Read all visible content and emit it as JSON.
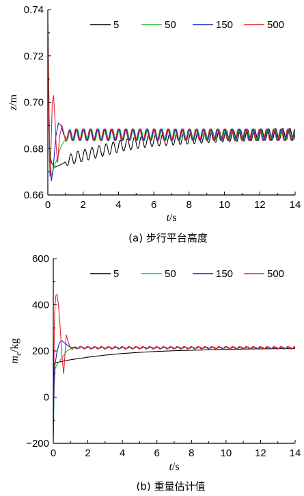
{
  "chart_data": [
    {
      "type": "line",
      "caption": "(a) 步行平台高度",
      "xlabel_italic": "t",
      "xlabel_unit": "/s",
      "ylabel_italic": "z",
      "ylabel_unit": "/m",
      "xlim": [
        0,
        14
      ],
      "ylim": [
        0.66,
        0.74
      ],
      "xticks": [
        "0",
        "2",
        "4",
        "6",
        "8",
        "10",
        "12",
        "14"
      ],
      "yticks": [
        "0.66",
        "0.68",
        "0.70",
        "0.72",
        "0.74"
      ],
      "grid": false,
      "legend": "top-right",
      "series": [
        {
          "name": "5",
          "color": "#000000",
          "x": [
            0,
            0.1,
            0.2,
            0.4,
            0.7,
            1,
            1.5,
            2,
            3,
            4,
            5,
            6,
            7,
            8,
            9,
            10,
            11,
            12,
            13,
            14
          ],
          "y": [
            0.735,
            0.68,
            0.674,
            0.672,
            0.673,
            0.674,
            0.676,
            0.677,
            0.679,
            0.681,
            0.6825,
            0.6835,
            0.684,
            0.6845,
            0.685,
            0.6855,
            0.6857,
            0.686,
            0.6862,
            0.6863
          ],
          "osc_amp": 0.0025,
          "osc_period": 0.4
        },
        {
          "name": "50",
          "color": "#22c42a",
          "x": [
            0,
            0.05,
            0.1,
            0.2,
            0.3,
            0.5,
            0.7,
            0.9,
            1.1,
            1.4,
            2,
            3,
            4,
            6,
            8,
            10,
            12,
            14
          ],
          "y": [
            0.72,
            0.71,
            0.68,
            0.668,
            0.671,
            0.675,
            0.68,
            0.683,
            0.685,
            0.686,
            0.686,
            0.686,
            0.686,
            0.686,
            0.686,
            0.686,
            0.686,
            0.686
          ],
          "osc_amp": 0.0025,
          "osc_period": 0.4
        },
        {
          "name": "150",
          "color": "#1a1ad8",
          "x": [
            0,
            0.05,
            0.1,
            0.2,
            0.3,
            0.45,
            0.6,
            0.75,
            0.9,
            1.1,
            1.3,
            2,
            4,
            6,
            8,
            10,
            12,
            14
          ],
          "y": [
            0.722,
            0.7,
            0.675,
            0.666,
            0.671,
            0.685,
            0.691,
            0.69,
            0.686,
            0.685,
            0.686,
            0.686,
            0.686,
            0.686,
            0.686,
            0.686,
            0.686,
            0.686
          ],
          "osc_amp": 0.0025,
          "osc_period": 0.4
        },
        {
          "name": "500",
          "color": "#e0242a",
          "x": [
            0,
            0.03,
            0.07,
            0.12,
            0.18,
            0.25,
            0.32,
            0.4,
            0.48,
            0.56,
            0.66,
            0.8,
            1,
            1.3,
            2,
            4,
            6,
            8,
            10,
            12,
            14
          ],
          "y": [
            0.726,
            0.715,
            0.69,
            0.668,
            0.68,
            0.7,
            0.703,
            0.694,
            0.68,
            0.674,
            0.685,
            0.69,
            0.684,
            0.686,
            0.686,
            0.686,
            0.686,
            0.686,
            0.686,
            0.686,
            0.686
          ],
          "osc_amp": 0.0025,
          "osc_period": 0.4
        }
      ]
    },
    {
      "type": "line",
      "caption": "(b) 重量估计值",
      "xlabel_italic": "t",
      "xlabel_unit": "/s",
      "ylabel_italic": "m",
      "ylabel_sub": "e",
      "ylabel_unit": "/kg",
      "xlim": [
        0,
        14
      ],
      "ylim": [
        -200,
        600
      ],
      "xticks": [
        "0",
        "2",
        "4",
        "6",
        "8",
        "10",
        "12",
        "14"
      ],
      "yticks": [
        "−200",
        "0",
        "200",
        "400",
        "600"
      ],
      "grid": false,
      "legend": "top-right",
      "series": [
        {
          "name": "5",
          "color": "#000000",
          "x": [
            0,
            0.05,
            0.1,
            0.2,
            0.5,
            1,
            2,
            3,
            4,
            5,
            6,
            7,
            8,
            9,
            10,
            11,
            12,
            13,
            14
          ],
          "y": [
            0,
            140,
            148,
            150,
            155,
            162,
            173,
            182,
            189,
            194,
            198,
            201,
            203,
            205,
            207,
            208,
            209,
            210,
            210
          ],
          "osc_amp": 0,
          "osc_period": 0.4
        },
        {
          "name": "50",
          "color": "#22c42a",
          "x": [
            0,
            0.05,
            0.1,
            0.2,
            0.4,
            0.6,
            0.8,
            1,
            1.3,
            2,
            4,
            6,
            8,
            10,
            12,
            14
          ],
          "y": [
            -180,
            50,
            120,
            140,
            160,
            180,
            200,
            212,
            215,
            214,
            214,
            214,
            214,
            214,
            214,
            214
          ],
          "osc_amp": 3,
          "osc_period": 0.4
        },
        {
          "name": "150",
          "color": "#1a1ad8",
          "x": [
            0,
            0.05,
            0.1,
            0.2,
            0.35,
            0.5,
            0.7,
            0.9,
            1.2,
            2,
            4,
            6,
            8,
            10,
            12,
            14
          ],
          "y": [
            -160,
            60,
            140,
            190,
            235,
            245,
            232,
            220,
            214,
            214,
            214,
            214,
            214,
            214,
            214,
            214
          ],
          "osc_amp": 3,
          "osc_period": 0.4
        },
        {
          "name": "500",
          "color": "#e0242a",
          "x": [
            0,
            0.03,
            0.06,
            0.1,
            0.15,
            0.22,
            0.3,
            0.4,
            0.5,
            0.6,
            0.75,
            0.9,
            1.1,
            1.4,
            2,
            4,
            6,
            8,
            10,
            12,
            14
          ],
          "y": [
            -190,
            100,
            300,
            400,
            440,
            445,
            400,
            300,
            180,
            100,
            270,
            230,
            205,
            216,
            214,
            214,
            214,
            214,
            214,
            214,
            214
          ],
          "osc_amp": 6,
          "osc_period": 0.4
        }
      ]
    }
  ]
}
